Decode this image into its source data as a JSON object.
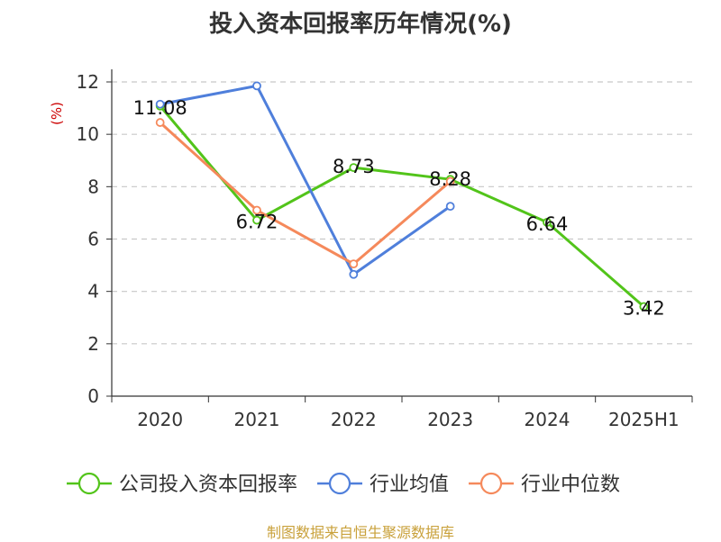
{
  "chart_data": {
    "type": "line",
    "title": "投入资本回报率历年情况(%)",
    "ylabel": "(%)",
    "categories": [
      "2020",
      "2021",
      "2022",
      "2023",
      "2024",
      "2025H1"
    ],
    "ylim": [
      0,
      12
    ],
    "yticks": [
      0,
      2,
      4,
      6,
      8,
      10,
      12
    ],
    "grid": true,
    "legend_position": "bottom",
    "series": [
      {
        "name": "公司投入资本回报率",
        "color": "#52c41a",
        "values": [
          11.08,
          6.72,
          8.73,
          8.28,
          6.64,
          3.42
        ],
        "labels": [
          "11.08",
          "6.72",
          "8.73",
          "8.28",
          "6.64",
          "3.42"
        ]
      },
      {
        "name": "行业均值",
        "color": "#4f7fdb",
        "values": [
          11.15,
          11.85,
          4.65,
          7.25,
          null,
          null
        ]
      },
      {
        "name": "行业中位数",
        "color": "#f5895b",
        "values": [
          10.45,
          7.1,
          5.05,
          8.2,
          null,
          null
        ]
      }
    ]
  },
  "footer": {
    "source": "制图数据来自恒生聚源数据库"
  }
}
